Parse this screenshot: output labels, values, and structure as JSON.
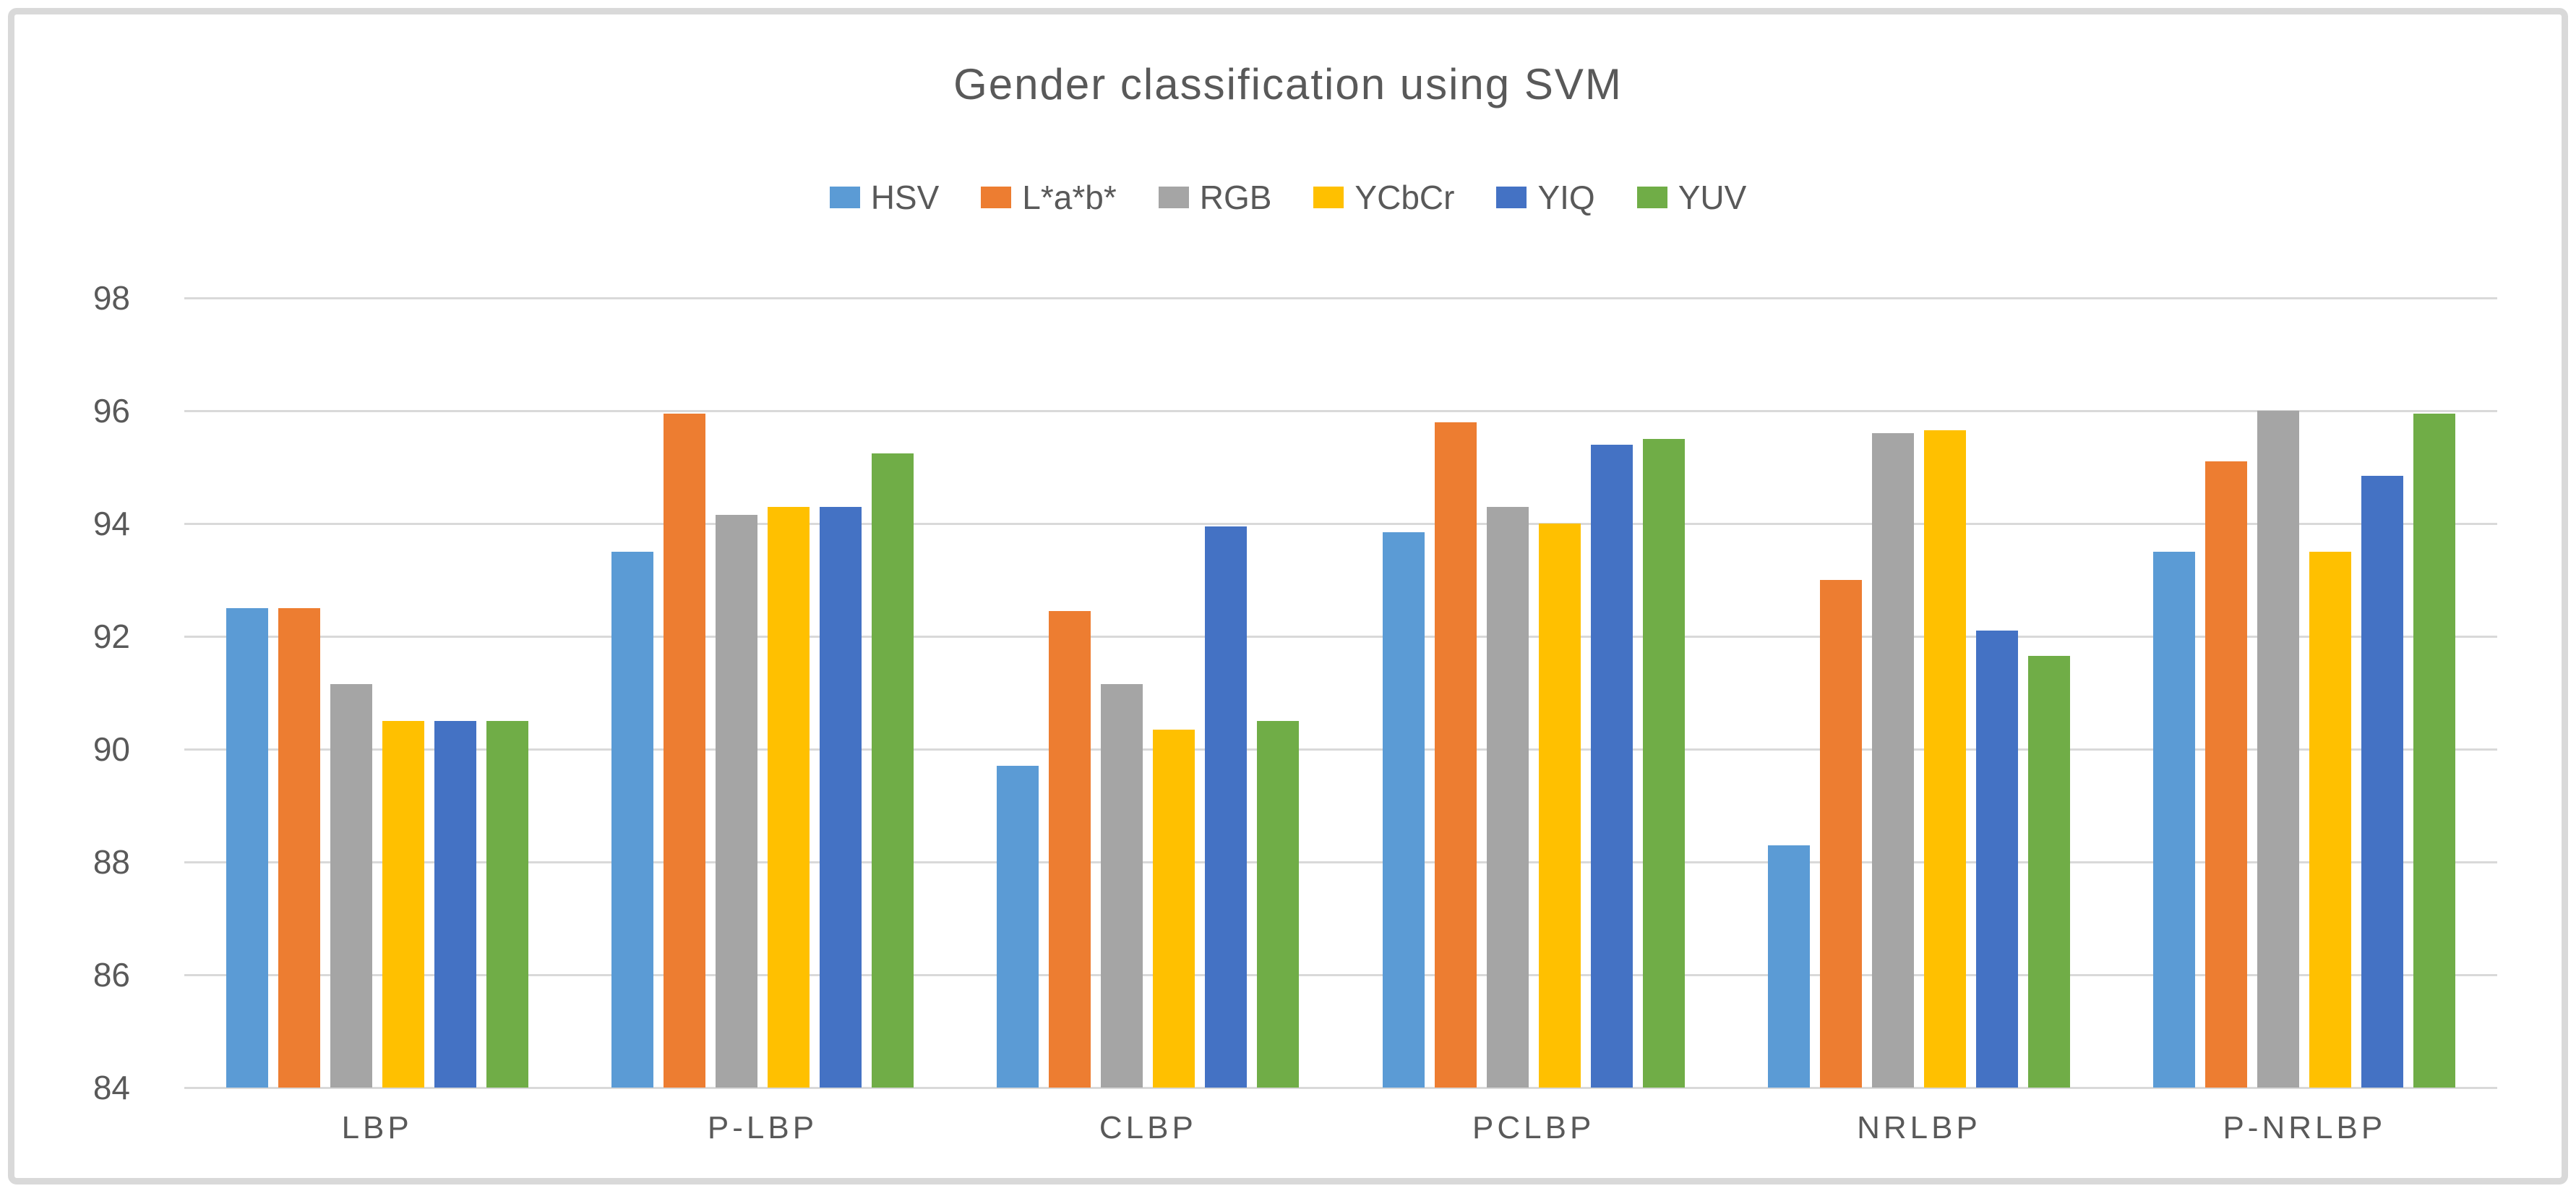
{
  "chart_data": {
    "type": "bar",
    "title": "Gender classification using SVM",
    "legend_position": "top",
    "grid": true,
    "xlabel": "",
    "ylabel": "",
    "ylim": [
      84,
      98
    ],
    "ytick_step": 2,
    "yticks": [
      98,
      96,
      94,
      92,
      90,
      88,
      86,
      84
    ],
    "categories": [
      "LBP",
      "P-LBP",
      "CLBP",
      "PCLBP",
      "NRLBP",
      "P-NRLBP"
    ],
    "series": [
      {
        "name": "HSV",
        "color": "#5B9BD5",
        "values": [
          92.5,
          93.5,
          89.7,
          93.85,
          88.3,
          93.5
        ]
      },
      {
        "name": "L*a*b*",
        "color": "#ED7D31",
        "values": [
          92.5,
          95.95,
          92.45,
          95.8,
          93.0,
          95.1
        ]
      },
      {
        "name": "RGB",
        "color": "#A5A5A5",
        "values": [
          91.15,
          94.15,
          91.15,
          94.3,
          95.6,
          96.0
        ]
      },
      {
        "name": "YCbCr",
        "color": "#FFC000",
        "values": [
          90.5,
          94.3,
          90.35,
          94.0,
          95.65,
          93.5
        ]
      },
      {
        "name": "YIQ",
        "color": "#4472C4",
        "values": [
          90.5,
          94.3,
          93.95,
          95.4,
          92.1,
          94.85
        ]
      },
      {
        "name": "YUV",
        "color": "#70AD47",
        "values": [
          90.5,
          95.25,
          90.5,
          95.5,
          91.65,
          95.95
        ]
      }
    ],
    "frame_color": "#d9d9d9",
    "gridline_color": "#d9d9d9",
    "text_color": "#595959"
  }
}
